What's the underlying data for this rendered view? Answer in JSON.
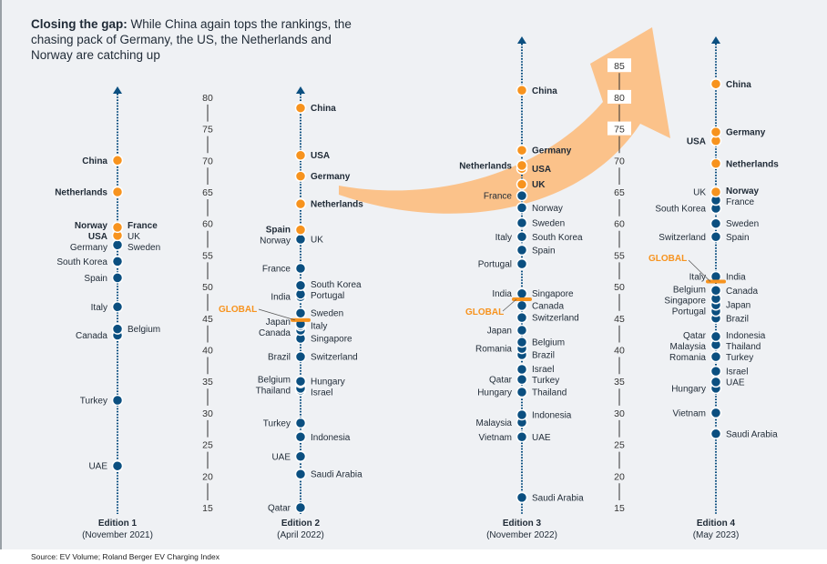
{
  "title": {
    "bold": "Closing the gap:",
    "text": " While China again tops the rankings, the chasing pack of Germany, the US, the Netherlands and Norway are catching up"
  },
  "source": "Source: EV Volume; Roland Berger EV Charging Index",
  "colors": {
    "highlight": "#f7931e",
    "regular": "#0b4f80",
    "arrow": "#fbc28a",
    "text": "#1f2a36",
    "global": "#f7931e"
  },
  "chart_data": {
    "type": "scatter",
    "title": "",
    "axes": [
      {
        "ticks": [
          15,
          20,
          25,
          30,
          35,
          40,
          45,
          50,
          55,
          60,
          65,
          70,
          75,
          80
        ],
        "range": [
          15,
          80
        ]
      },
      {
        "ticks": [
          15,
          20,
          25,
          30,
          35,
          40,
          45,
          50,
          55,
          60,
          65,
          70,
          75,
          80,
          85
        ],
        "range": [
          15,
          85
        ]
      }
    ],
    "global_label": "GLOBAL",
    "editions": [
      {
        "title": "Edition 1",
        "subtitle": "(November 2021)",
        "global": null,
        "points": [
          {
            "country": "China",
            "value": 70,
            "side": "L",
            "highlight": true,
            "bold": true
          },
          {
            "country": "Netherlands",
            "value": 65,
            "side": "L",
            "highlight": true,
            "bold": true
          },
          {
            "country": "Norway",
            "value": 59.4,
            "side": "L",
            "highlight": true,
            "bold": true
          },
          {
            "country": "France",
            "value": 59.4,
            "side": "R",
            "highlight": true,
            "bold": true
          },
          {
            "country": "USA",
            "value": 58.1,
            "side": "L",
            "highlight": true,
            "bold": true
          },
          {
            "country": "UK",
            "value": 58.1,
            "side": "R",
            "highlight": true,
            "bold": false
          },
          {
            "country": "Germany",
            "value": 56.6,
            "side": "L",
            "highlight": false,
            "bold": false
          },
          {
            "country": "Sweden",
            "value": 56.6,
            "side": "R",
            "highlight": false,
            "bold": false
          },
          {
            "country": "South Korea",
            "value": 54,
            "side": "L",
            "highlight": false,
            "bold": false
          },
          {
            "country": "Spain",
            "value": 51.4,
            "side": "L",
            "highlight": false,
            "bold": false
          },
          {
            "country": "Italy",
            "value": 46.8,
            "side": "L",
            "highlight": false,
            "bold": false
          },
          {
            "country": "Belgium",
            "value": 43.3,
            "side": "R",
            "highlight": false,
            "bold": false
          },
          {
            "country": "Canada",
            "value": 42.3,
            "side": "L",
            "highlight": false,
            "bold": false
          },
          {
            "country": "Turkey",
            "value": 32,
            "side": "L",
            "highlight": false,
            "bold": false
          },
          {
            "country": "UAE",
            "value": 21.6,
            "side": "L",
            "highlight": false,
            "bold": false
          }
        ]
      },
      {
        "title": "Edition 2",
        "subtitle": "(April 2022)",
        "global": 44.7,
        "points": [
          {
            "country": "China",
            "value": 78.3,
            "side": "R",
            "highlight": true,
            "bold": true
          },
          {
            "country": "USA",
            "value": 70.8,
            "side": "R",
            "highlight": true,
            "bold": true
          },
          {
            "country": "Germany",
            "value": 67.5,
            "side": "R",
            "highlight": true,
            "bold": true
          },
          {
            "country": "Netherlands",
            "value": 63.1,
            "side": "R",
            "highlight": true,
            "bold": true
          },
          {
            "country": "Spain",
            "value": 59,
            "side": "L",
            "highlight": true,
            "bold": true
          },
          {
            "country": "Norway",
            "value": 57.5,
            "side": "L",
            "highlight": false,
            "bold": false
          },
          {
            "country": "UK",
            "value": 57.5,
            "side": "R",
            "highlight": false,
            "bold": false
          },
          {
            "country": "France",
            "value": 52.9,
            "side": "L",
            "highlight": false,
            "bold": false
          },
          {
            "country": "South Korea",
            "value": 50.2,
            "side": "R",
            "highlight": false,
            "bold": false
          },
          {
            "country": "India",
            "value": 48.4,
            "side": "L",
            "highlight": false,
            "bold": false
          },
          {
            "country": "Portugal",
            "value": 48.8,
            "side": "R",
            "highlight": false,
            "bold": false
          },
          {
            "country": "Sweden",
            "value": 45.8,
            "side": "R",
            "highlight": false,
            "bold": false
          },
          {
            "country": "Japan",
            "value": 44.1,
            "side": "L",
            "highlight": false,
            "bold": false
          },
          {
            "country": "Italy",
            "value": 43.8,
            "side": "R",
            "highlight": false,
            "bold": false
          },
          {
            "country": "Canada",
            "value": 43.1,
            "side": "L",
            "highlight": false,
            "bold": false
          },
          {
            "country": "Singapore",
            "value": 41.8,
            "side": "R",
            "highlight": false,
            "bold": false
          },
          {
            "country": "Brazil",
            "value": 38.9,
            "side": "L",
            "highlight": false,
            "bold": false
          },
          {
            "country": "Switzerland",
            "value": 38.9,
            "side": "R",
            "highlight": false,
            "bold": false
          },
          {
            "country": "Belgium",
            "value": 35,
            "side": "L",
            "highlight": false,
            "bold": false
          },
          {
            "country": "Hungary",
            "value": 34.8,
            "side": "R",
            "highlight": false,
            "bold": false
          },
          {
            "country": "Thailand",
            "value": 33.9,
            "side": "L",
            "highlight": false,
            "bold": false
          },
          {
            "country": "Israel",
            "value": 33.6,
            "side": "R",
            "highlight": false,
            "bold": false
          },
          {
            "country": "Turkey",
            "value": 28.4,
            "side": "L",
            "highlight": false,
            "bold": false
          },
          {
            "country": "Indonesia",
            "value": 26.2,
            "side": "R",
            "highlight": false,
            "bold": false
          },
          {
            "country": "UAE",
            "value": 23.1,
            "side": "L",
            "highlight": false,
            "bold": false
          },
          {
            "country": "Saudi Arabia",
            "value": 20.3,
            "side": "R",
            "highlight": false,
            "bold": false
          },
          {
            "country": "Qatar",
            "value": 15,
            "side": "L",
            "highlight": false,
            "bold": false
          }
        ]
      },
      {
        "title": "Edition 3",
        "subtitle": "(November 2022)",
        "global": 48,
        "points": [
          {
            "country": "China",
            "value": 81.1,
            "side": "R",
            "highlight": true,
            "bold": true
          },
          {
            "country": "Germany",
            "value": 71.6,
            "side": "R",
            "highlight": true,
            "bold": true
          },
          {
            "country": "Netherlands",
            "value": 69.2,
            "side": "L",
            "highlight": true,
            "bold": true
          },
          {
            "country": "USA",
            "value": 68.7,
            "side": "R",
            "highlight": true,
            "bold": true
          },
          {
            "country": "UK",
            "value": 66.2,
            "side": "R",
            "highlight": true,
            "bold": true
          },
          {
            "country": "France",
            "value": 64.4,
            "side": "L",
            "highlight": false,
            "bold": false
          },
          {
            "country": "Norway",
            "value": 62.5,
            "side": "R",
            "highlight": false,
            "bold": false
          },
          {
            "country": "Sweden",
            "value": 60.1,
            "side": "R",
            "highlight": false,
            "bold": false
          },
          {
            "country": "Italy",
            "value": 57.9,
            "side": "L",
            "highlight": false,
            "bold": false
          },
          {
            "country": "South Korea",
            "value": 57.9,
            "side": "R",
            "highlight": false,
            "bold": false
          },
          {
            "country": "Spain",
            "value": 55.8,
            "side": "R",
            "highlight": false,
            "bold": false
          },
          {
            "country": "Portugal",
            "value": 53.6,
            "side": "L",
            "highlight": false,
            "bold": false
          },
          {
            "country": "India",
            "value": 48.9,
            "side": "L",
            "highlight": false,
            "bold": false
          },
          {
            "country": "Singapore",
            "value": 48.9,
            "side": "R",
            "highlight": false,
            "bold": false
          },
          {
            "country": "Canada",
            "value": 47,
            "side": "R",
            "highlight": false,
            "bold": false
          },
          {
            "country": "Switzerland",
            "value": 45.1,
            "side": "R",
            "highlight": false,
            "bold": false
          },
          {
            "country": "Japan",
            "value": 43.1,
            "side": "L",
            "highlight": false,
            "bold": false
          },
          {
            "country": "Belgium",
            "value": 41.2,
            "side": "R",
            "highlight": false,
            "bold": false
          },
          {
            "country": "Romania",
            "value": 40.2,
            "side": "L",
            "highlight": false,
            "bold": false
          },
          {
            "country": "Brazil",
            "value": 39.2,
            "side": "R",
            "highlight": false,
            "bold": false
          },
          {
            "country": "Israel",
            "value": 36.9,
            "side": "R",
            "highlight": false,
            "bold": false
          },
          {
            "country": "Qatar",
            "value": 35.3,
            "side": "L",
            "highlight": false,
            "bold": false
          },
          {
            "country": "Turkey",
            "value": 35.3,
            "side": "R",
            "highlight": false,
            "bold": false
          },
          {
            "country": "Hungary",
            "value": 33.3,
            "side": "L",
            "highlight": false,
            "bold": false
          },
          {
            "country": "Thailand",
            "value": 33.3,
            "side": "R",
            "highlight": false,
            "bold": false
          },
          {
            "country": "Indonesia",
            "value": 29.7,
            "side": "R",
            "highlight": false,
            "bold": false
          },
          {
            "country": "Malaysia",
            "value": 28.5,
            "side": "L",
            "highlight": false,
            "bold": false
          },
          {
            "country": "Vietnam",
            "value": 26.2,
            "side": "L",
            "highlight": false,
            "bold": false
          },
          {
            "country": "UAE",
            "value": 26.2,
            "side": "R",
            "highlight": false,
            "bold": false
          },
          {
            "country": "Saudi Arabia",
            "value": 16.6,
            "side": "R",
            "highlight": false,
            "bold": false
          }
        ]
      },
      {
        "title": "Edition 4",
        "subtitle": "(May 2023)",
        "global": 50.8,
        "points": [
          {
            "country": "China",
            "value": 82.1,
            "side": "R",
            "highlight": true,
            "bold": true
          },
          {
            "country": "Germany",
            "value": 74.5,
            "side": "R",
            "highlight": true,
            "bold": true
          },
          {
            "country": "USA",
            "value": 73.1,
            "side": "L",
            "highlight": true,
            "bold": true
          },
          {
            "country": "Netherlands",
            "value": 69.5,
            "side": "R",
            "highlight": true,
            "bold": true
          },
          {
            "country": "UK",
            "value": 65,
            "side": "L",
            "highlight": true,
            "bold": false
          },
          {
            "country": "Norway",
            "value": 65,
            "side": "R",
            "highlight": true,
            "bold": true
          },
          {
            "country": "France",
            "value": 63.7,
            "side": "R",
            "highlight": false,
            "bold": false
          },
          {
            "country": "South Korea",
            "value": 62.4,
            "side": "L",
            "highlight": false,
            "bold": false
          },
          {
            "country": "Sweden",
            "value": 60,
            "side": "R",
            "highlight": false,
            "bold": false
          },
          {
            "country": "Switzerland",
            "value": 57.9,
            "side": "L",
            "highlight": false,
            "bold": false
          },
          {
            "country": "Spain",
            "value": 57.9,
            "side": "R",
            "highlight": false,
            "bold": false
          },
          {
            "country": "Italy",
            "value": 51.6,
            "side": "L",
            "highlight": false,
            "bold": false
          },
          {
            "country": "India",
            "value": 51.6,
            "side": "R",
            "highlight": false,
            "bold": false
          },
          {
            "country": "Belgium",
            "value": 49.4,
            "side": "L",
            "highlight": false,
            "bold": false
          },
          {
            "country": "Canada",
            "value": 49.4,
            "side": "R",
            "highlight": false,
            "bold": false
          },
          {
            "country": "Singapore",
            "value": 48.1,
            "side": "L",
            "highlight": false,
            "bold": false
          },
          {
            "country": "Japan",
            "value": 47.1,
            "side": "R",
            "highlight": false,
            "bold": false
          },
          {
            "country": "Portugal",
            "value": 46.1,
            "side": "L",
            "highlight": false,
            "bold": false
          },
          {
            "country": "Brazil",
            "value": 45,
            "side": "R",
            "highlight": false,
            "bold": false
          },
          {
            "country": "Qatar",
            "value": 42.1,
            "side": "L",
            "highlight": false,
            "bold": false
          },
          {
            "country": "Indonesia",
            "value": 42.1,
            "side": "R",
            "highlight": false,
            "bold": false
          },
          {
            "country": "Malaysia",
            "value": 40.8,
            "side": "L",
            "highlight": false,
            "bold": false
          },
          {
            "country": "Thailand",
            "value": 40.8,
            "side": "R",
            "highlight": false,
            "bold": false
          },
          {
            "country": "Romania",
            "value": 38.9,
            "side": "L",
            "highlight": false,
            "bold": false
          },
          {
            "country": "Turkey",
            "value": 38.9,
            "side": "R",
            "highlight": false,
            "bold": false
          },
          {
            "country": "Israel",
            "value": 36.6,
            "side": "R",
            "highlight": false,
            "bold": false
          },
          {
            "country": "UAE",
            "value": 34.9,
            "side": "R",
            "highlight": false,
            "bold": false
          },
          {
            "country": "Hungary",
            "value": 33.9,
            "side": "L",
            "highlight": false,
            "bold": false
          },
          {
            "country": "Vietnam",
            "value": 30,
            "side": "L",
            "highlight": false,
            "bold": false
          },
          {
            "country": "Saudi Arabia",
            "value": 26.7,
            "side": "R",
            "highlight": false,
            "bold": false
          }
        ]
      }
    ]
  }
}
